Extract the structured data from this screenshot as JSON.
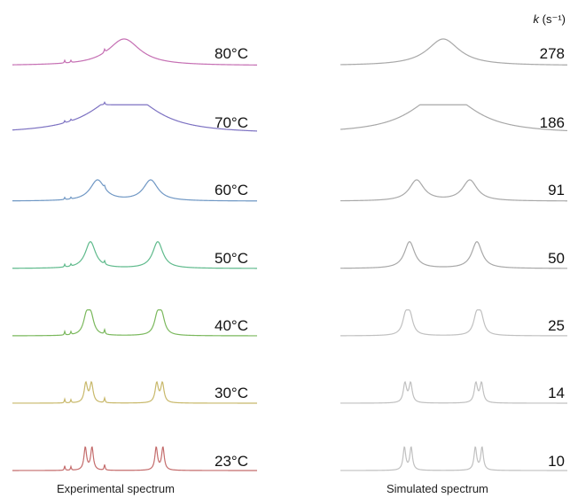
{
  "header": {
    "k_symbol": "k",
    "k_unit": "(s⁻¹)"
  },
  "captions": {
    "experimental": "Experimental spectrum",
    "simulated": "Simulated spectrum"
  },
  "rows": [
    {
      "temperature": "80°C",
      "k": "278",
      "color": "#c56fb3"
    },
    {
      "temperature": "70°C",
      "k": "186",
      "color": "#7d72c2"
    },
    {
      "temperature": "60°C",
      "k": "91",
      "color": "#6f97c4"
    },
    {
      "temperature": "50°C",
      "k": "50",
      "color": "#5fba8c"
    },
    {
      "temperature": "40°C",
      "k": "25",
      "color": "#7ab85c"
    },
    {
      "temperature": "30°C",
      "k": "14",
      "color": "#c8b86a"
    },
    {
      "temperature": "23°C",
      "k": "10",
      "color": "#c46c6c"
    }
  ],
  "colors": {
    "simulated_trace": "#a8a8a8",
    "simulated_trace_light": "#c0c0c0"
  }
}
